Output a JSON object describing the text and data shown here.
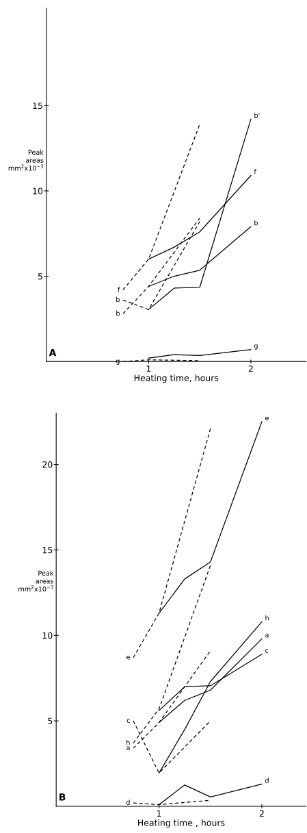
{
  "chart_data": [
    {
      "type": "line",
      "xlabel": "Heating time, hours",
      "ylabel": "Peak areas mm$^{2}$x10$^{−3}$",
      "annotations": [
        "A"
      ],
      "xlim": [
        0,
        2.54
      ],
      "xticks": [
        1,
        2
      ],
      "ylim": [
        0,
        20.7
      ],
      "yticks": [
        5,
        10,
        15
      ],
      "grid": false,
      "legend": false,
      "marker": "none",
      "series": [
        {
          "name": "f",
          "color": "#000000",
          "line_style": "dashed",
          "x": [
            0.75,
            1,
            1.5
          ],
          "values": [
            4.2,
            6.0,
            13.9
          ]
        },
        {
          "name": "b",
          "color": "#000000",
          "line_style": "dashed",
          "x": [
            0.75,
            1,
            1.5
          ],
          "values": [
            3.6,
            3.05,
            8.2
          ]
        },
        {
          "name": "b",
          "color": "#000000",
          "line_style": "dashed",
          "x": [
            0.75,
            1,
            1.5
          ],
          "values": [
            2.8,
            4.4,
            8.4
          ]
        },
        {
          "name": "g",
          "color": "#000000",
          "line_style": "dashed",
          "x": [
            0.75,
            1,
            1.5
          ],
          "values": [
            0.0,
            0.1,
            0.05
          ]
        },
        {
          "name": "b'",
          "color": "#000000",
          "line_style": "solid",
          "x": [
            1,
            1.25,
            1.5,
            2
          ],
          "values": [
            3.05,
            4.3,
            4.35,
            14.2
          ]
        },
        {
          "name": "f",
          "color": "#000000",
          "line_style": "solid",
          "x": [
            1,
            1.25,
            1.5,
            2
          ],
          "values": [
            6.0,
            6.7,
            7.6,
            10.9
          ]
        },
        {
          "name": "b",
          "color": "#000000",
          "line_style": "solid",
          "x": [
            1,
            1.25,
            1.5,
            2
          ],
          "values": [
            4.4,
            5.0,
            5.35,
            7.9
          ]
        },
        {
          "name": "g",
          "color": "#000000",
          "line_style": "solid",
          "x": [
            1,
            1.25,
            1.5,
            2
          ],
          "values": [
            0.2,
            0.4,
            0.35,
            0.7
          ]
        }
      ]
    },
    {
      "type": "line",
      "xlabel": "Heating time , hours",
      "ylabel": "Peak areas mm$^{2}$x10$^{−3}$",
      "annotations": [
        "B"
      ],
      "xlim": [
        0,
        2.43
      ],
      "xticks": [
        1,
        2
      ],
      "ylim": [
        0,
        23
      ],
      "yticks": [
        5,
        10,
        15,
        20
      ],
      "grid": false,
      "legend": false,
      "marker": "none",
      "series": [
        {
          "name": "e",
          "color": "#000000",
          "line_style": "dashed",
          "x": [
            0.75,
            1,
            1.5
          ],
          "values": [
            8.7,
            11.3,
            22.1
          ]
        },
        {
          "name": "c",
          "color": "#000000",
          "line_style": "dashed",
          "x": [
            0.75,
            1,
            1.5
          ],
          "values": [
            5.0,
            1.95,
            5.0
          ]
        },
        {
          "name": "h",
          "color": "#000000",
          "line_style": "dashed",
          "x": [
            0.75,
            1,
            1.5
          ],
          "values": [
            3.7,
            5.7,
            14.1
          ]
        },
        {
          "name": "a",
          "color": "#000000",
          "line_style": "dashed",
          "x": [
            0.75,
            1,
            1.5
          ],
          "values": [
            3.4,
            4.9,
            9.1
          ]
        },
        {
          "name": "d",
          "color": "#000000",
          "line_style": "dashed",
          "x": [
            0.75,
            1,
            1.5
          ],
          "values": [
            0.2,
            0.1,
            0.35
          ]
        },
        {
          "name": "e",
          "color": "#000000",
          "line_style": "solid",
          "x": [
            1,
            1.25,
            1.5,
            2
          ],
          "values": [
            11.3,
            13.3,
            14.3,
            22.5
          ]
        },
        {
          "name": "h",
          "color": "#000000",
          "line_style": "solid",
          "x": [
            1,
            1.25,
            1.5,
            2
          ],
          "values": [
            1.95,
            4.5,
            7.3,
            10.8
          ]
        },
        {
          "name": "a",
          "color": "#000000",
          "line_style": "solid",
          "x": [
            1,
            1.25,
            1.5,
            2
          ],
          "values": [
            4.9,
            6.2,
            6.8,
            9.8
          ]
        },
        {
          "name": "c",
          "color": "#000000",
          "line_style": "solid",
          "x": [
            1,
            1.25,
            1.5,
            2
          ],
          "values": [
            5.6,
            7.0,
            7.05,
            8.9
          ]
        },
        {
          "name": "d",
          "color": "#000000",
          "line_style": "solid",
          "x": [
            1,
            1.25,
            1.5,
            2
          ],
          "values": [
            0.1,
            1.25,
            0.55,
            1.3
          ]
        }
      ]
    }
  ]
}
